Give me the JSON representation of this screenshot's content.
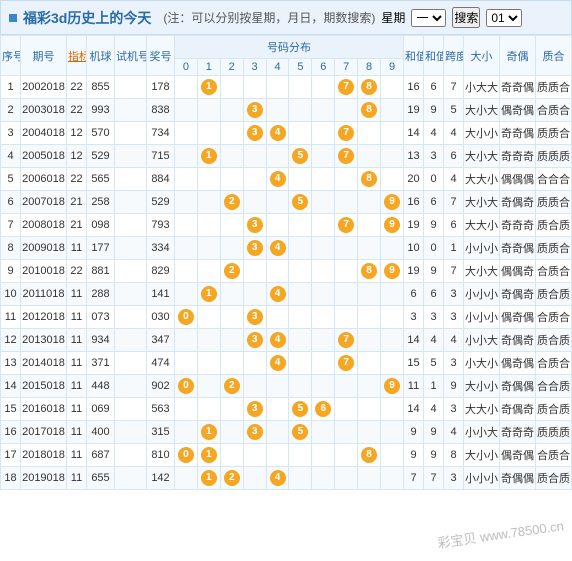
{
  "header": {
    "title": "福彩3d历史上的今天",
    "note": "(注：可以分别按星期，月日，期数搜索)",
    "week_label": "星期",
    "search_btn": "搜索",
    "week_value": "一",
    "day_value": "01"
  },
  "columns": {
    "xh": "序号",
    "qh": "期号",
    "zb": "指标",
    "jq": "机球",
    "sj": "试机号",
    "jh": "奖号",
    "dist": "号码分布",
    "nums": [
      "0",
      "1",
      "2",
      "3",
      "4",
      "5",
      "6",
      "7",
      "8",
      "9"
    ],
    "hz": "和值",
    "hzw": "和值尾",
    "kd": "跨度",
    "dx": "大小",
    "jo": "奇偶",
    "zh": "质合"
  },
  "ball_color": "#f5a623",
  "rows": [
    {
      "xh": "1",
      "qh": "2002018",
      "zb": "22",
      "jq": "855",
      "sj": "",
      "jh": "178",
      "balls": [
        null,
        "1",
        null,
        null,
        null,
        null,
        null,
        "7",
        "8",
        null
      ],
      "hz": "16",
      "hzw": "6",
      "kd": "7",
      "dx": "小大大",
      "jo": "奇奇偶",
      "zh": "质质合"
    },
    {
      "xh": "2",
      "qh": "2003018",
      "zb": "22",
      "jq": "993",
      "sj": "",
      "jh": "838",
      "balls": [
        null,
        null,
        null,
        "3",
        null,
        null,
        null,
        null,
        "8",
        null
      ],
      "hz": "19",
      "hzw": "9",
      "kd": "5",
      "dx": "大小大",
      "jo": "偶奇偶",
      "zh": "合质合"
    },
    {
      "xh": "3",
      "qh": "2004018",
      "zb": "12",
      "jq": "570",
      "sj": "",
      "jh": "734",
      "balls": [
        null,
        null,
        null,
        "3",
        "4",
        null,
        null,
        "7",
        null,
        null
      ],
      "hz": "14",
      "hzw": "4",
      "kd": "4",
      "dx": "大小小",
      "jo": "奇奇偶",
      "zh": "质质合"
    },
    {
      "xh": "4",
      "qh": "2005018",
      "zb": "12",
      "jq": "529",
      "sj": "",
      "jh": "715",
      "balls": [
        null,
        "1",
        null,
        null,
        null,
        "5",
        null,
        "7",
        null,
        null
      ],
      "hz": "13",
      "hzw": "3",
      "kd": "6",
      "dx": "大小大",
      "jo": "奇奇奇",
      "zh": "质质质"
    },
    {
      "xh": "5",
      "qh": "2006018",
      "zb": "22",
      "jq": "565",
      "sj": "",
      "jh": "884",
      "balls": [
        null,
        null,
        null,
        null,
        "4",
        null,
        null,
        null,
        "8",
        null
      ],
      "hz": "20",
      "hzw": "0",
      "kd": "4",
      "dx": "大大小",
      "jo": "偶偶偶",
      "zh": "合合合"
    },
    {
      "xh": "6",
      "qh": "2007018",
      "zb": "21",
      "jq": "258",
      "sj": "",
      "jh": "529",
      "balls": [
        null,
        null,
        "2",
        null,
        null,
        "5",
        null,
        null,
        null,
        "9"
      ],
      "hz": "16",
      "hzw": "6",
      "kd": "7",
      "dx": "大小大",
      "jo": "奇偶奇",
      "zh": "质质合"
    },
    {
      "xh": "7",
      "qh": "2008018",
      "zb": "21",
      "jq": "098",
      "sj": "",
      "jh": "793",
      "balls": [
        null,
        null,
        null,
        "3",
        null,
        null,
        null,
        "7",
        null,
        "9"
      ],
      "hz": "19",
      "hzw": "9",
      "kd": "6",
      "dx": "大大小",
      "jo": "奇奇奇",
      "zh": "质合质"
    },
    {
      "xh": "8",
      "qh": "2009018",
      "zb": "11",
      "jq": "177",
      "sj": "",
      "jh": "334",
      "balls": [
        null,
        null,
        null,
        "3",
        "4",
        null,
        null,
        null,
        null,
        null
      ],
      "hz": "10",
      "hzw": "0",
      "kd": "1",
      "dx": "小小小",
      "jo": "奇奇偶",
      "zh": "质质合"
    },
    {
      "xh": "9",
      "qh": "2010018",
      "zb": "22",
      "jq": "881",
      "sj": "",
      "jh": "829",
      "balls": [
        null,
        null,
        "2",
        null,
        null,
        null,
        null,
        null,
        "8",
        "9"
      ],
      "hz": "19",
      "hzw": "9",
      "kd": "7",
      "dx": "大小大",
      "jo": "偶偶奇",
      "zh": "合质合"
    },
    {
      "xh": "10",
      "qh": "2011018",
      "zb": "11",
      "jq": "288",
      "sj": "",
      "jh": "141",
      "balls": [
        null,
        "1",
        null,
        null,
        "4",
        null,
        null,
        null,
        null,
        null
      ],
      "hz": "6",
      "hzw": "6",
      "kd": "3",
      "dx": "小小小",
      "jo": "奇偶奇",
      "zh": "质合质"
    },
    {
      "xh": "11",
      "qh": "2012018",
      "zb": "11",
      "jq": "073",
      "sj": "",
      "jh": "030",
      "balls": [
        "0",
        null,
        null,
        "3",
        null,
        null,
        null,
        null,
        null,
        null
      ],
      "hz": "3",
      "hzw": "3",
      "kd": "3",
      "dx": "小小小",
      "jo": "偶奇偶",
      "zh": "合质合"
    },
    {
      "xh": "12",
      "qh": "2013018",
      "zb": "11",
      "jq": "934",
      "sj": "",
      "jh": "347",
      "balls": [
        null,
        null,
        null,
        "3",
        "4",
        null,
        null,
        "7",
        null,
        null
      ],
      "hz": "14",
      "hzw": "4",
      "kd": "4",
      "dx": "小小大",
      "jo": "奇偶奇",
      "zh": "质合质"
    },
    {
      "xh": "13",
      "qh": "2014018",
      "zb": "11",
      "jq": "371",
      "sj": "",
      "jh": "474",
      "balls": [
        null,
        null,
        null,
        null,
        "4",
        null,
        null,
        "7",
        null,
        null
      ],
      "hz": "15",
      "hzw": "5",
      "kd": "3",
      "dx": "小大小",
      "jo": "偶奇偶",
      "zh": "合质合"
    },
    {
      "xh": "14",
      "qh": "2015018",
      "zb": "11",
      "jq": "448",
      "sj": "",
      "jh": "902",
      "balls": [
        "0",
        null,
        "2",
        null,
        null,
        null,
        null,
        null,
        null,
        "9"
      ],
      "hz": "11",
      "hzw": "1",
      "kd": "9",
      "dx": "大小小",
      "jo": "奇偶偶",
      "zh": "合合质"
    },
    {
      "xh": "15",
      "qh": "2016018",
      "zb": "11",
      "jq": "069",
      "sj": "",
      "jh": "563",
      "balls": [
        null,
        null,
        null,
        "3",
        null,
        "5",
        "6",
        null,
        null,
        null
      ],
      "hz": "14",
      "hzw": "4",
      "kd": "3",
      "dx": "大大小",
      "jo": "奇偶奇",
      "zh": "质合质"
    },
    {
      "xh": "16",
      "qh": "2017018",
      "zb": "11",
      "jq": "400",
      "sj": "",
      "jh": "315",
      "balls": [
        null,
        "1",
        null,
        "3",
        null,
        "5",
        null,
        null,
        null,
        null
      ],
      "hz": "9",
      "hzw": "9",
      "kd": "4",
      "dx": "小小大",
      "jo": "奇奇奇",
      "zh": "质质质"
    },
    {
      "xh": "17",
      "qh": "2018018",
      "zb": "11",
      "jq": "687",
      "sj": "",
      "jh": "810",
      "balls": [
        "0",
        "1",
        null,
        null,
        null,
        null,
        null,
        null,
        "8",
        null
      ],
      "hz": "9",
      "hzw": "9",
      "kd": "8",
      "dx": "大小小",
      "jo": "偶奇偶",
      "zh": "合质合"
    },
    {
      "xh": "18",
      "qh": "2019018",
      "zb": "11",
      "jq": "655",
      "sj": "",
      "jh": "142",
      "balls": [
        null,
        "1",
        "2",
        null,
        "4",
        null,
        null,
        null,
        null,
        null
      ],
      "hz": "7",
      "hzw": "7",
      "kd": "3",
      "dx": "小小小",
      "jo": "奇偶偶",
      "zh": "质合质"
    }
  ],
  "watermark": "彩宝贝 www.78500.cn"
}
